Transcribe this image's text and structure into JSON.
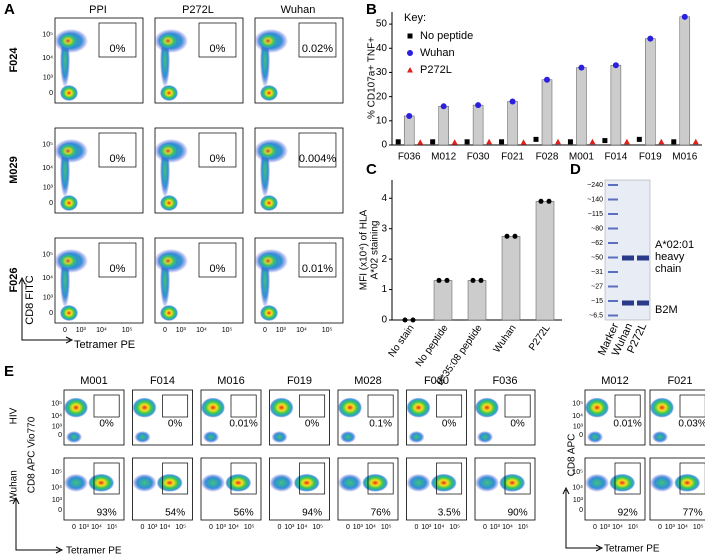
{
  "panel_labels": [
    "A",
    "B",
    "C",
    "D",
    "E"
  ],
  "panel_a": {
    "columns": [
      "PPI",
      "P272L",
      "Wuhan"
    ],
    "column_colors": [
      "#000000",
      "#d7261e",
      "#3b2fd0"
    ],
    "rows": [
      "F024",
      "M029",
      "F026"
    ],
    "gates": [
      [
        "0%",
        "0%",
        "0.02%"
      ],
      [
        "0%",
        "0%",
        "0.004%"
      ],
      [
        "0%",
        "0%",
        "0.01%"
      ]
    ],
    "gate_colors": [
      "#000000",
      "#000000",
      "#3b2fd0"
    ],
    "x_label": "Tetramer PE",
    "y_label": "CD8 FITC",
    "x_ticks": [
      "0",
      "10³",
      "10⁴",
      "10⁵"
    ],
    "y_ticks": [
      "0",
      "10³",
      "10⁴",
      "10⁵"
    ]
  },
  "chart_data": [
    {
      "type": "bar",
      "y_label": "% CD107a+ TNF+",
      "categories": [
        "F036",
        "M012",
        "F030",
        "F021",
        "F028",
        "M001",
        "F014",
        "F019",
        "M016"
      ],
      "legend_title": "Key:",
      "bar_color": "#cccccc",
      "series": [
        {
          "name": "No peptide",
          "color": "#000000",
          "marker": "square",
          "values": [
            0.5,
            0.5,
            0.5,
            0.5,
            1.5,
            0.5,
            1,
            1.5,
            0.5
          ]
        },
        {
          "name": "Wuhan",
          "color": "#2b1fe0",
          "marker": "circle",
          "values": [
            12,
            16,
            16.5,
            18,
            27,
            32,
            33,
            44,
            53
          ]
        },
        {
          "name": "P272L",
          "color": "#e0201b",
          "marker": "triangle",
          "values": [
            0.3,
            0.3,
            0.5,
            0.3,
            0.5,
            0.5,
            0.5,
            0.5,
            0.5
          ]
        }
      ],
      "ylim": [
        0,
        55
      ],
      "yticks": [
        0,
        10,
        20,
        30,
        40,
        50
      ]
    },
    {
      "type": "bar",
      "y_label": [
        "MFI (x10⁴) of HLA",
        "A*02 staining"
      ],
      "categories": [
        "No stain",
        "No peptide",
        "B*35:08 peptide",
        "Wuhan",
        "P272L"
      ],
      "category_colors": [
        "#000000",
        "#000000",
        "#000000",
        "#2b1fe0",
        "#e0201b"
      ],
      "values": [
        0,
        1.3,
        1.3,
        2.75,
        3.9
      ],
      "color": "#cccccc",
      "ylim": [
        0,
        4.6
      ],
      "yticks": [
        0,
        1,
        2,
        3,
        4
      ]
    }
  ],
  "panel_d": {
    "ladder": [
      "~240",
      "~140",
      "~115",
      "~80",
      "~62",
      "~50",
      "~31",
      "~27",
      "~15",
      "~6.5"
    ],
    "lanes": [
      "Marker",
      "Wuhan",
      "P272L"
    ],
    "lane_colors": [
      "#000000",
      "#2b1fe0",
      "#d7261e"
    ],
    "heavy_chain": [
      "A*02:01",
      "heavy",
      "chain"
    ],
    "b2m": "B2M"
  },
  "panel_e": {
    "columns": [
      "M001",
      "F014",
      "M016",
      "F019",
      "M028",
      "F030",
      "F036"
    ],
    "columns_2": [
      "M012",
      "F021"
    ],
    "rows": [
      "HIV",
      "Wuhan"
    ],
    "row_colors": [
      "#000000",
      "#3b2fd0"
    ],
    "hiv": [
      "0%",
      "0%",
      "0.01%",
      "0%",
      "0.1%",
      "0%",
      "0%"
    ],
    "wuhan": [
      "93%",
      "54%",
      "56%",
      "94%",
      "76%",
      "3.5%",
      "90%"
    ],
    "hiv_2": [
      "0.01%",
      "0.03%"
    ],
    "wuhan_2": [
      "92%",
      "77%"
    ],
    "y_label": "CD8 APC Vio770",
    "y_label_2": "CD8 APC",
    "x_label": "Tetramer PE",
    "x_ticks": [
      "0",
      "10³",
      "10⁴",
      "10⁵"
    ],
    "y_ticks": [
      "0",
      "10³",
      "10⁴",
      "10⁵"
    ]
  }
}
